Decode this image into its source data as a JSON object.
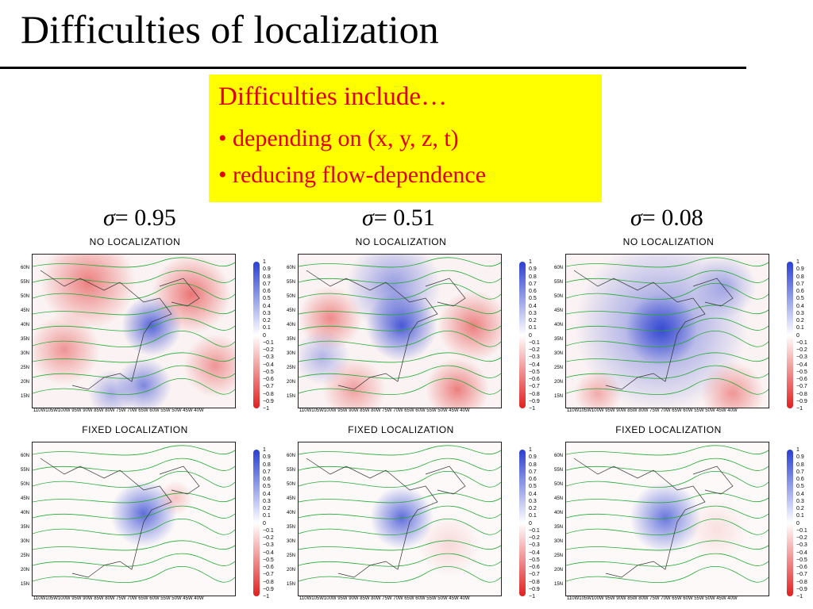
{
  "slide": {
    "title": "Difficulties of localization",
    "note": {
      "heading": "Difficulties include…",
      "bullets": [
        "• depending on (x, y, z, t)",
        "• reducing flow-dependence"
      ]
    }
  },
  "columns": [
    {
      "sigma_symbol": "σ",
      "sigma_value": "= 0.95"
    },
    {
      "sigma_symbol": "σ",
      "sigma_value": "= 0.51"
    },
    {
      "sigma_symbol": "σ",
      "sigma_value": "= 0.08"
    }
  ],
  "panel_titles": {
    "top": "NO LOCALIZATION",
    "bottom": "FIXED LOCALIZATION"
  },
  "lat_labels": [
    "60N",
    "55N",
    "50N",
    "45N",
    "40N",
    "35N",
    "30N",
    "25N",
    "20N",
    "15N"
  ],
  "lon_labels": "110W105W100W 95W 90W 85W 80W 75W 70W 65W 60W 55W 50W 45W 40W",
  "colorbar_labels": [
    "1",
    "0.9",
    "0.8",
    "0.7",
    "0.6",
    "0.5",
    "0.4",
    "0.3",
    "0.2",
    "0.1",
    "0",
    "−0.1",
    "−0.2",
    "−0.3",
    "−0.4",
    "−0.5",
    "−0.6",
    "−0.7",
    "−0.8",
    "−0.9",
    "−1"
  ],
  "colors": {
    "positive": "#2a3fd0",
    "negative": "#e02020",
    "contour": "#22aa33",
    "highlight": "#ffff00",
    "note_text": "#e00000"
  }
}
